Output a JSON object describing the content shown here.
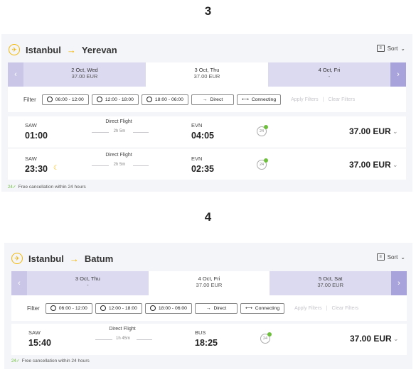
{
  "section3": {
    "step_number": "3",
    "origin": "Istanbul",
    "destination": "Yerevan",
    "sort_label": "Sort",
    "dates": [
      {
        "label": "2 Oct, Wed",
        "price": "37.00 EUR"
      },
      {
        "label": "3 Oct, Thu",
        "price": "37.00 EUR",
        "active": true
      },
      {
        "label": "4 Oct, Fri",
        "price": "-"
      }
    ],
    "filter_label": "Filter",
    "filters": [
      "06:00 - 12:00",
      "12:00 - 18:00",
      "18:00 - 06:00",
      "Direct",
      "Connecting"
    ],
    "apply_filters": "Apply Filters",
    "clear_filters": "Clear Filters",
    "flights": [
      {
        "from_code": "SAW",
        "dep_time": "01:00",
        "type": "Direct Flight",
        "duration": "2h 5m",
        "to_code": "EVN",
        "arr_time": "04:05",
        "badge": "24",
        "price": "37.00 EUR"
      },
      {
        "from_code": "SAW",
        "dep_time": "23:30",
        "type": "Direct Flight",
        "duration": "2h 5m",
        "to_code": "EVN",
        "arr_time": "02:35",
        "badge": "24",
        "price": "37.00 EUR"
      }
    ],
    "cancellation_note": "Free cancellation within 24 hours"
  },
  "section4": {
    "step_number": "4",
    "origin": "Istanbul",
    "destination": "Batum",
    "sort_label": "Sort",
    "dates": [
      {
        "label": "3 Oct, Thu",
        "price": "-"
      },
      {
        "label": "4 Oct, Fri",
        "price": "37.00 EUR",
        "active": true
      },
      {
        "label": "5 Oct, Sat",
        "price": "37.00 EUR"
      }
    ],
    "filter_label": "Filter",
    "filters": [
      "06:00 - 12:00",
      "12:00 - 18:00",
      "18:00 - 06:00",
      "Direct",
      "Connecting"
    ],
    "apply_filters": "Apply Filters",
    "clear_filters": "Clear Filters",
    "flights": [
      {
        "from_code": "SAW",
        "dep_time": "15:40",
        "type": "Direct Flight",
        "duration": "1h 45m",
        "to_code": "BUS",
        "arr_time": "18:25",
        "badge": "24",
        "price": "37.00 EUR"
      }
    ],
    "cancellation_note": "Free cancellation within 24 hours"
  },
  "colors": {
    "accent": "#f2b705",
    "date_bar": "#dcdaf0",
    "nav": "#a9a3dc",
    "check": "#6dbf3c"
  }
}
